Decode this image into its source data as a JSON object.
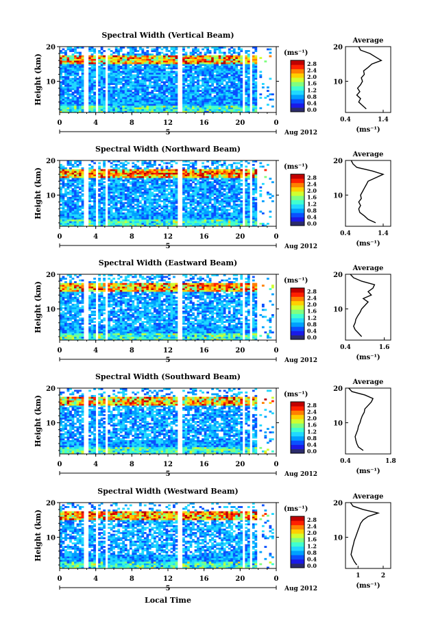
{
  "figure": {
    "month_label": "Aug 2012",
    "x_axis_title": "Local Time",
    "date_tick_label": "5",
    "time_ticks": [
      0,
      4,
      8,
      12,
      16,
      20,
      0
    ],
    "height_label": "Height (km)",
    "height_ticks": [
      10,
      20
    ],
    "colorbar_unit": "(ms⁻¹)",
    "colorbar_ticks": [
      "2.8",
      "2.4",
      "2.0",
      "1.6",
      "1.2",
      "0.8",
      "0.4",
      "0.0"
    ],
    "average_title": "Average",
    "average_xlabel": "(ms⁻¹)"
  },
  "panels": [
    {
      "title": "Spectral Width (Vertical Beam)"
    },
    {
      "title": "Spectral Width (Northward Beam)"
    },
    {
      "title": "Spectral Width (Eastward Beam)"
    },
    {
      "title": "Spectral Width (Southward Beam)"
    },
    {
      "title": "Spectral Width (Westward Beam)"
    }
  ],
  "colors": {
    "colorbar_scale": [
      "#2b2b6b",
      "#1a1ae6",
      "#0a50ff",
      "#00a0ff",
      "#20d8ff",
      "#40ffd0",
      "#80ff80",
      "#d0ff30",
      "#ffd000",
      "#ff8000",
      "#ff2000",
      "#c00000"
    ],
    "axis": "#000000"
  },
  "chart_data": [
    {
      "type": "heatmap",
      "title": "Spectral Width (Vertical Beam)",
      "xlabel": "",
      "ylabel": "Height (km)",
      "xlim": [
        0,
        24
      ],
      "ylim": [
        1,
        20
      ],
      "colorbar": {
        "label": "(ms⁻¹)",
        "range": [
          0.0,
          3.0
        ]
      },
      "average_profile": {
        "title": "Average",
        "xlabel": "(ms⁻¹)",
        "xlim": [
          0.4,
          1.6
        ],
        "xticks": [
          0.4,
          1.4
        ],
        "height": [
          2,
          3,
          4,
          5,
          6,
          7,
          8,
          9,
          10,
          11,
          12,
          13,
          14,
          15,
          16,
          17,
          18,
          19,
          20
        ],
        "value": [
          0.95,
          0.85,
          0.75,
          0.8,
          0.7,
          0.78,
          0.72,
          0.8,
          0.85,
          0.82,
          0.9,
          0.88,
          1.0,
          1.1,
          1.35,
          1.2,
          1.05,
          0.8,
          0.75
        ]
      }
    },
    {
      "type": "heatmap",
      "title": "Spectral Width (Northward Beam)",
      "xlabel": "",
      "ylabel": "Height (km)",
      "xlim": [
        0,
        24
      ],
      "ylim": [
        1,
        20
      ],
      "colorbar": {
        "label": "(ms⁻¹)",
        "range": [
          0.0,
          3.0
        ]
      },
      "average_profile": {
        "title": "Average",
        "xlabel": "(ms⁻¹)",
        "xlim": [
          0.4,
          1.6
        ],
        "xticks": [
          0.4,
          1.4
        ],
        "height": [
          2,
          3,
          4,
          5,
          6,
          7,
          8,
          9,
          10,
          11,
          12,
          13,
          14,
          15,
          16,
          17,
          18,
          19,
          20
        ],
        "value": [
          1.2,
          1.0,
          0.9,
          0.78,
          0.75,
          0.8,
          0.75,
          0.82,
          0.8,
          0.85,
          0.9,
          0.95,
          1.0,
          1.2,
          1.4,
          1.1,
          0.7,
          0.6,
          0.55
        ]
      }
    },
    {
      "type": "heatmap",
      "title": "Spectral Width (Eastward Beam)",
      "xlabel": "",
      "ylabel": "Height (km)",
      "xlim": [
        0,
        24
      ],
      "ylim": [
        1,
        20
      ],
      "colorbar": {
        "label": "(ms⁻¹)",
        "range": [
          0.0,
          3.0
        ]
      },
      "average_profile": {
        "title": "Average",
        "xlabel": "(ms⁻¹)",
        "xlim": [
          0.4,
          1.8
        ],
        "xticks": [
          0.4,
          1.6
        ],
        "height": [
          2,
          3,
          4,
          5,
          6,
          7,
          8,
          9,
          10,
          11,
          12,
          13,
          14,
          15,
          16,
          17,
          18,
          19,
          20
        ],
        "value": [
          0.9,
          0.8,
          0.7,
          0.65,
          0.7,
          0.72,
          0.78,
          0.85,
          0.9,
          1.0,
          1.1,
          0.95,
          1.2,
          1.1,
          1.25,
          1.3,
          0.9,
          0.65,
          0.55
        ]
      }
    },
    {
      "type": "heatmap",
      "title": "Spectral Width (Southward Beam)",
      "xlabel": "",
      "ylabel": "Height (km)",
      "xlim": [
        0,
        24
      ],
      "ylim": [
        1,
        20
      ],
      "colorbar": {
        "label": "(ms⁻¹)",
        "range": [
          0.0,
          3.0
        ]
      },
      "average_profile": {
        "title": "Average",
        "xlabel": "(ms⁻¹)",
        "xlim": [
          0.4,
          1.8
        ],
        "xticks": [
          0.4,
          1.8
        ],
        "height": [
          2,
          3,
          4,
          5,
          6,
          7,
          8,
          9,
          10,
          11,
          12,
          13,
          14,
          15,
          16,
          17,
          18,
          19,
          20
        ],
        "value": [
          0.95,
          0.8,
          0.75,
          0.72,
          0.7,
          0.74,
          0.78,
          0.8,
          0.85,
          0.88,
          0.92,
          0.98,
          1.0,
          1.1,
          1.2,
          1.25,
          1.0,
          0.6,
          0.5
        ]
      }
    },
    {
      "type": "heatmap",
      "title": "Spectral Width (Westward Beam)",
      "xlabel": "Local Time",
      "ylabel": "Height (km)",
      "xlim": [
        0,
        24
      ],
      "ylim": [
        1,
        20
      ],
      "colorbar": {
        "label": "(ms⁻¹)",
        "range": [
          0.0,
          3.0
        ]
      },
      "average_profile": {
        "title": "Average",
        "xlabel": "(ms⁻¹)",
        "xlim": [
          0.5,
          2.3
        ],
        "xticks": [
          1,
          2
        ],
        "height": [
          2,
          3,
          4,
          5,
          6,
          7,
          8,
          9,
          10,
          11,
          12,
          13,
          14,
          15,
          16,
          17,
          18,
          19,
          20
        ],
        "value": [
          0.95,
          0.85,
          0.78,
          0.72,
          0.75,
          0.78,
          0.82,
          0.85,
          0.9,
          0.95,
          1.0,
          1.05,
          1.1,
          1.2,
          1.4,
          1.8,
          1.2,
          0.8,
          0.7
        ]
      }
    }
  ]
}
